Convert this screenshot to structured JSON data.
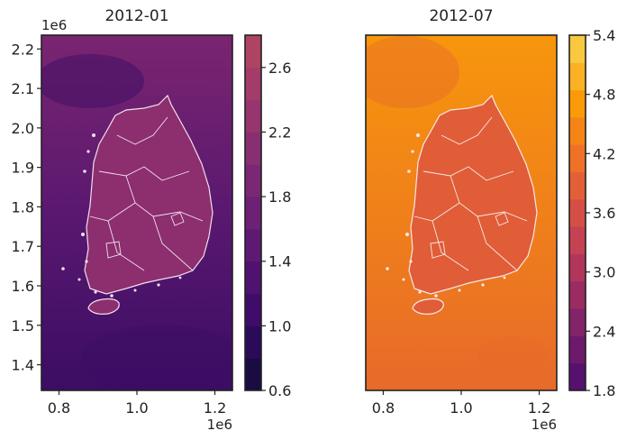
{
  "chart_data": [
    {
      "type": "heatmap",
      "title": "2012-01",
      "x_ticks": [
        "0.8",
        "1.0",
        "1.2"
      ],
      "x_tick_values": [
        0.8,
        1.0,
        1.2
      ],
      "x_offset": "1e6",
      "y_ticks": [
        "1.4",
        "1.5",
        "1.6",
        "1.7",
        "1.8",
        "1.9",
        "2.0",
        "2.1",
        "2.2"
      ],
      "y_tick_values": [
        1.4,
        1.5,
        1.6,
        1.7,
        1.8,
        1.9,
        2.0,
        2.1,
        2.2
      ],
      "y_offset": "1e6",
      "xlim": [
        0.755,
        1.245
      ],
      "ylim": [
        1.335,
        2.235
      ],
      "colorbar": {
        "ticks": [
          "0.6",
          "1.0",
          "1.4",
          "1.8",
          "2.2",
          "2.6"
        ],
        "tick_values": [
          0.6,
          1.0,
          1.4,
          1.8,
          2.2,
          2.6
        ],
        "range": [
          0.6,
          2.8
        ],
        "colors": [
          "#1a0b40",
          "#2b0a5a",
          "#3f0c6a",
          "#4f1270",
          "#5e1a72",
          "#6c2174",
          "#7a2874",
          "#882f72",
          "#96356e",
          "#a33c69",
          "#ae4463"
        ]
      },
      "field_colors": {
        "sea_low": "#3b0d63",
        "sea_mid": "#5a1870",
        "sea_high": "#7a2570",
        "land": "#8d2e6e"
      }
    },
    {
      "type": "heatmap",
      "title": "2012-07",
      "x_ticks": [
        "0.8",
        "1.0",
        "1.2"
      ],
      "x_tick_values": [
        0.8,
        1.0,
        1.2
      ],
      "x_offset": "1e6",
      "xlim": [
        0.755,
        1.245
      ],
      "ylim": [
        1.335,
        2.235
      ],
      "colorbar": {
        "ticks": [
          "1.8",
          "2.4",
          "3.0",
          "3.6",
          "4.2",
          "4.8",
          "5.4"
        ],
        "tick_values": [
          1.8,
          2.4,
          3.0,
          3.6,
          4.2,
          4.8,
          5.4
        ],
        "range": [
          1.8,
          5.4
        ],
        "colors": [
          "#56106e",
          "#6d1a6c",
          "#832368",
          "#9a2c62",
          "#b1365a",
          "#c44252",
          "#d54f46",
          "#e35f37",
          "#ee7127",
          "#f68415",
          "#fa9a09",
          "#fbb124",
          "#f8c93e"
        ]
      },
      "field_colors": {
        "sea_low": "#e76a2a",
        "sea_mid": "#f0801a",
        "sea_high": "#f7960c",
        "land": "#e05d38"
      }
    }
  ]
}
